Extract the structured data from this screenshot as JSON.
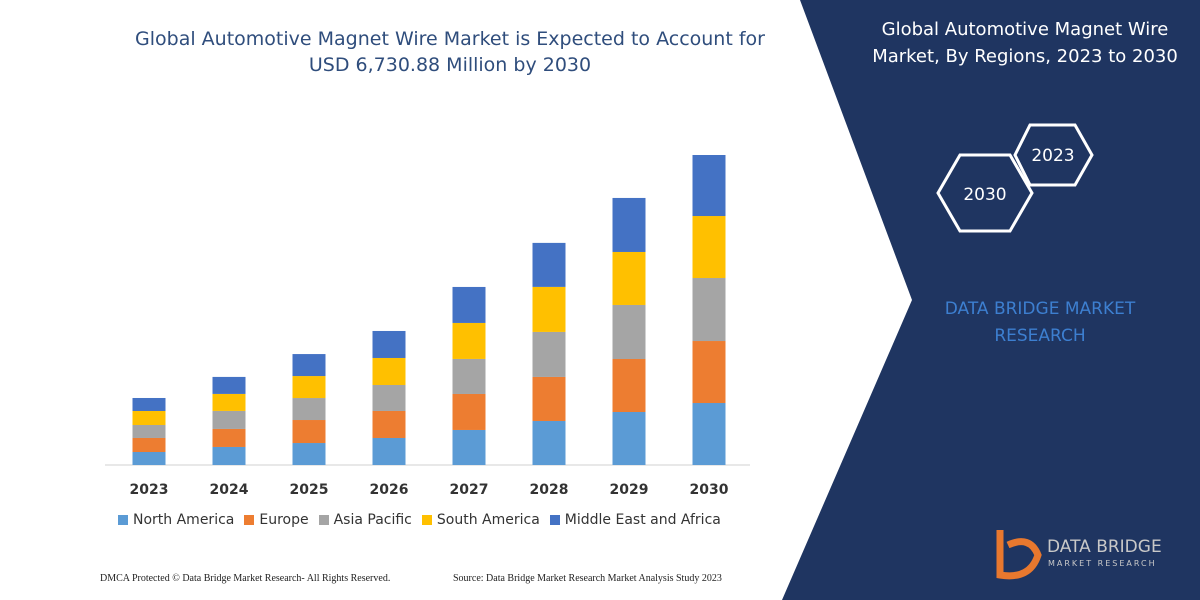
{
  "chart_data": {
    "type": "stacked-bar",
    "title": "Global Automotive Magnet Wire Market is Expected to Account for USD 6,730.88 Million by 2030",
    "categories": [
      "2023",
      "2024",
      "2025",
      "2026",
      "2027",
      "2028",
      "2029",
      "2030"
    ],
    "series": [
      {
        "name": "North America",
        "color": "#5b9bd5",
        "values": [
          282,
          391,
          477,
          586,
          760,
          955,
          1150,
          1345
        ]
      },
      {
        "name": "Europe",
        "color": "#ed7d31",
        "values": [
          304,
          391,
          499,
          586,
          781,
          955,
          1150,
          1345
        ]
      },
      {
        "name": "Asia Pacific",
        "color": "#a5a5a5",
        "values": [
          282,
          391,
          477,
          564,
          760,
          977,
          1172,
          1367
        ]
      },
      {
        "name": "South America",
        "color": "#ffc000",
        "values": [
          304,
          369,
          477,
          586,
          781,
          977,
          1150,
          1345
        ]
      },
      {
        "name": "Middle East and Africa",
        "color": "#4472c4",
        "values": [
          282,
          369,
          477,
          586,
          781,
          955,
          1172,
          1324
        ]
      }
    ]
  },
  "panel": {
    "title": "Global Automotive Magnet Wire Market, By Regions, 2023 to 2030",
    "hex_start": "2023",
    "hex_end": "2030",
    "brand": "DATA BRIDGE MARKET RESEARCH",
    "logo_name": "DATA BRIDGE",
    "logo_sub": "MARKET RESEARCH"
  },
  "footer": {
    "left": "DMCA Protected © Data Bridge Market Research- All Rights Reserved.",
    "right": "Source: Data Bridge Market Research Market Analysis Study 2023"
  }
}
